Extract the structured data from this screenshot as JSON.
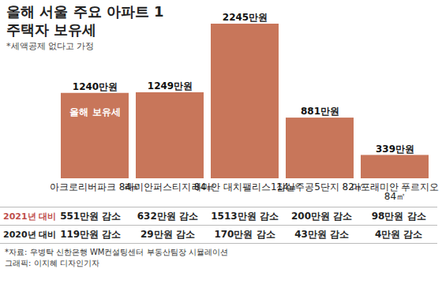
{
  "chart_data": {
    "type": "bar",
    "title": "올해 서울 주요 아파트 1주택자 보유세",
    "subtitle": "*세액공제 없다고 가정",
    "categories": [
      "아크로리버파크 84㎡",
      "래미안퍼스티지 84㎡",
      "래미안 대치팰리스114㎡",
      "잠실주공5단지 82㎡",
      "마포래미안 푸르지오 84㎡"
    ],
    "series": [
      {
        "name": "올해 보유세",
        "color": "#c8765a",
        "values": [
          1240,
          1249,
          2245,
          881,
          339
        ],
        "value_labels": [
          "1240만원",
          "1249만원",
          "2245만원",
          "881만원",
          "339만원"
        ]
      }
    ],
    "ylim": [
      0,
      2245
    ],
    "tick_labels": false,
    "data_labels": true,
    "table": {
      "rows": [
        {
          "label": "2021년 대비",
          "cells": [
            "551만원 감소",
            "632만원 감소",
            "1513만원 감소",
            "200만원 감소",
            "98만원 감소"
          ]
        },
        {
          "label": "2020년 대비",
          "cells": [
            "119만원 감소",
            "29만원 감소",
            "170만원 감소",
            "43만원 감소",
            "4만원 감소"
          ]
        }
      ]
    },
    "source": "*자료: 우병탁 신한은행 WM컨설팅센터 부동산팀장 시뮬레이션",
    "credit": "그래픽: 이지혜 디자인기자"
  }
}
